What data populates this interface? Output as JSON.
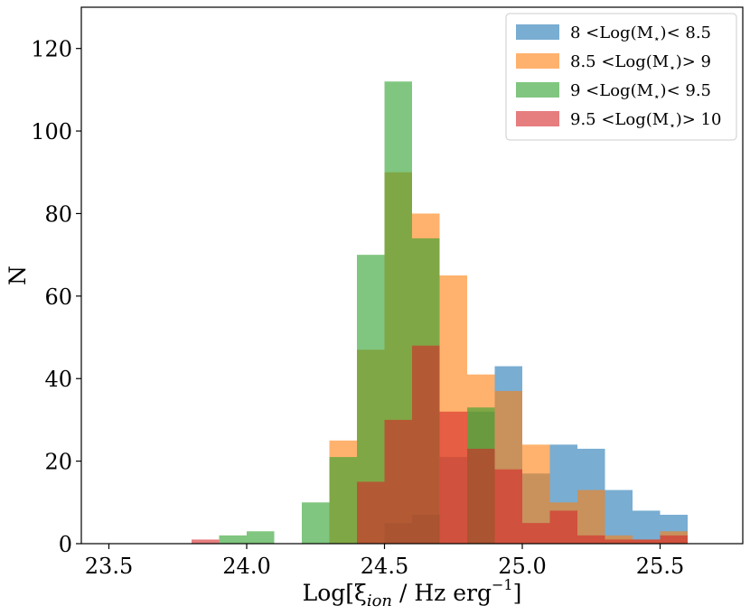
{
  "chart_data": {
    "type": "bar",
    "subtype": "histogram",
    "xlabel": "Log[ξ_ion / Hz erg^-1]",
    "ylabel": "N",
    "xlim": [
      23.4,
      25.8
    ],
    "ylim": [
      0,
      130
    ],
    "xticks": [
      23.5,
      24.0,
      24.5,
      25.0,
      25.5
    ],
    "xtick_labels": [
      "23.5",
      "24.0",
      "24.5",
      "25.0",
      "25.5"
    ],
    "yticks": [
      0,
      20,
      40,
      60,
      80,
      100,
      120
    ],
    "ytick_labels": [
      "0",
      "20",
      "40",
      "60",
      "80",
      "100",
      "120"
    ],
    "grid": false,
    "legend_position": "top-right",
    "bin_edges": [
      23.8,
      23.9,
      24.0,
      24.1,
      24.2,
      24.3,
      24.4,
      24.5,
      24.6,
      24.7,
      24.8,
      24.9,
      25.0,
      25.1,
      25.2,
      25.3,
      25.4,
      25.5,
      25.6,
      25.7,
      25.8
    ],
    "series": [
      {
        "name": "8 <Log(M⋆)< 8.5",
        "label_parts": {
          "pre": "8 <Log(M",
          "sub": "⋆",
          "post": ")< 8.5"
        },
        "color": "#1f77b4",
        "opacity": 0.6,
        "values": [
          0,
          0,
          0,
          0,
          0,
          0,
          0,
          5,
          7,
          21,
          32,
          43,
          17,
          24,
          23,
          13,
          8,
          7,
          0,
          0
        ]
      },
      {
        "name": "8.5 <Log(M⋆)> 9",
        "label_parts": {
          "pre": "8.5 <Log(M",
          "sub": "⋆",
          "post": ")> 9"
        },
        "color": "#ff7f0e",
        "opacity": 0.6,
        "values": [
          0,
          0,
          0,
          0,
          0,
          25,
          47,
          90,
          80,
          65,
          41,
          37,
          24,
          10,
          13,
          2,
          1,
          3,
          0,
          0
        ]
      },
      {
        "name": "9 <Log(M⋆)< 9.5",
        "label_parts": {
          "pre": "9 <Log(M",
          "sub": "⋆",
          "post": ")< 9.5"
        },
        "color": "#2ca02c",
        "opacity": 0.6,
        "values": [
          0,
          2,
          3,
          0,
          10,
          21,
          70,
          112,
          74,
          0,
          33,
          0,
          0,
          0,
          0,
          0,
          0,
          0,
          0,
          0
        ]
      },
      {
        "name": "9.5 <Log(M⋆)> 10",
        "label_parts": {
          "pre": "9.5 <Log(M",
          "sub": "⋆",
          "post": ")> 10"
        },
        "color": "#d62728",
        "opacity": 0.6,
        "values": [
          1,
          0,
          0,
          0,
          0,
          0,
          15,
          30,
          48,
          32,
          23,
          18,
          5,
          8,
          2,
          1,
          1,
          2,
          0,
          0
        ]
      }
    ]
  }
}
